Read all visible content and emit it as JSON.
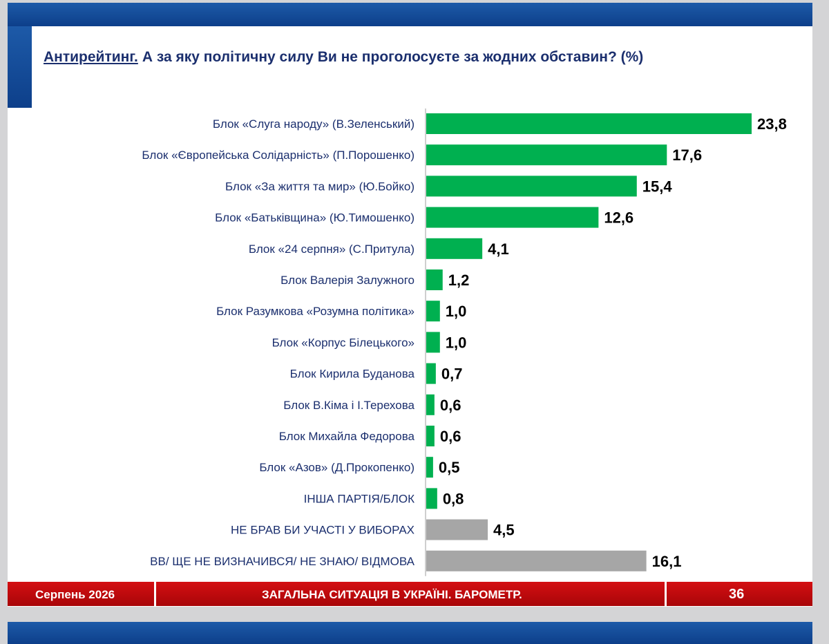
{
  "header": {
    "title_keyword": "Антирейтинг.",
    "title_text": "А за яку політичну силу Ви не проголосуєте за жодних обставин? (%)"
  },
  "chart_data": {
    "type": "bar",
    "orientation": "horizontal",
    "categories": [
      "Блок «Слуга народу» (В.Зеленський)",
      "Блок «Європейська Солідарність» (П.Порошенко)",
      "Блок «За життя та мир» (Ю.Бойко)",
      "Блок «Батьківщина» (Ю.Тимошенко)",
      "Блок «24 серпня» (С.Притула)",
      "Блок Валерія Залужного",
      "Блок Разумкова «Розумна політика»",
      "Блок «Корпус Білецького»",
      "Блок Кирила Буданова",
      "Блок В.Кіма і І.Терехова",
      "Блок Михайла Федорова",
      "Блок «Азов» (Д.Прокопенко)",
      "ІНША ПАРТІЯ/БЛОК",
      "НЕ БРАВ БИ УЧАСТІ У ВИБОРАХ",
      "ВВ/ ЩЕ НЕ ВИЗНАЧИВСЯ/ НЕ ЗНАЮ/ ВІДМОВА"
    ],
    "values": [
      23.8,
      17.6,
      15.4,
      12.6,
      4.1,
      1.2,
      1.0,
      1.0,
      0.7,
      0.6,
      0.6,
      0.5,
      0.8,
      4.5,
      16.1
    ],
    "value_labels": [
      "23,8",
      "17,6",
      "15,4",
      "12,6",
      "4,1",
      "1,2",
      "1,0",
      "1,0",
      "0,7",
      "0,6",
      "0,6",
      "0,5",
      "0,8",
      "4,5",
      "16,1"
    ],
    "colors": [
      "#00b050",
      "#00b050",
      "#00b050",
      "#00b050",
      "#00b050",
      "#00b050",
      "#00b050",
      "#00b050",
      "#00b050",
      "#00b050",
      "#00b050",
      "#00b050",
      "#00b050",
      "#a6a6a6",
      "#a6a6a6"
    ],
    "xlim": [
      0,
      23.8
    ],
    "grid": false,
    "legend": "none"
  },
  "footer": {
    "date": "Серпень 2026",
    "center_text": "ЗАГАЛЬНА СИТУАЦІЯ В УКРАЇНІ. БАРОМЕТР.",
    "page_number": "36"
  },
  "colors": {
    "brand_blue": "#0d3f8a",
    "title_text": "#1b2f6e",
    "footer_red": "#c00a0d",
    "bar_green": "#00b050",
    "bar_gray": "#a6a6a6"
  }
}
